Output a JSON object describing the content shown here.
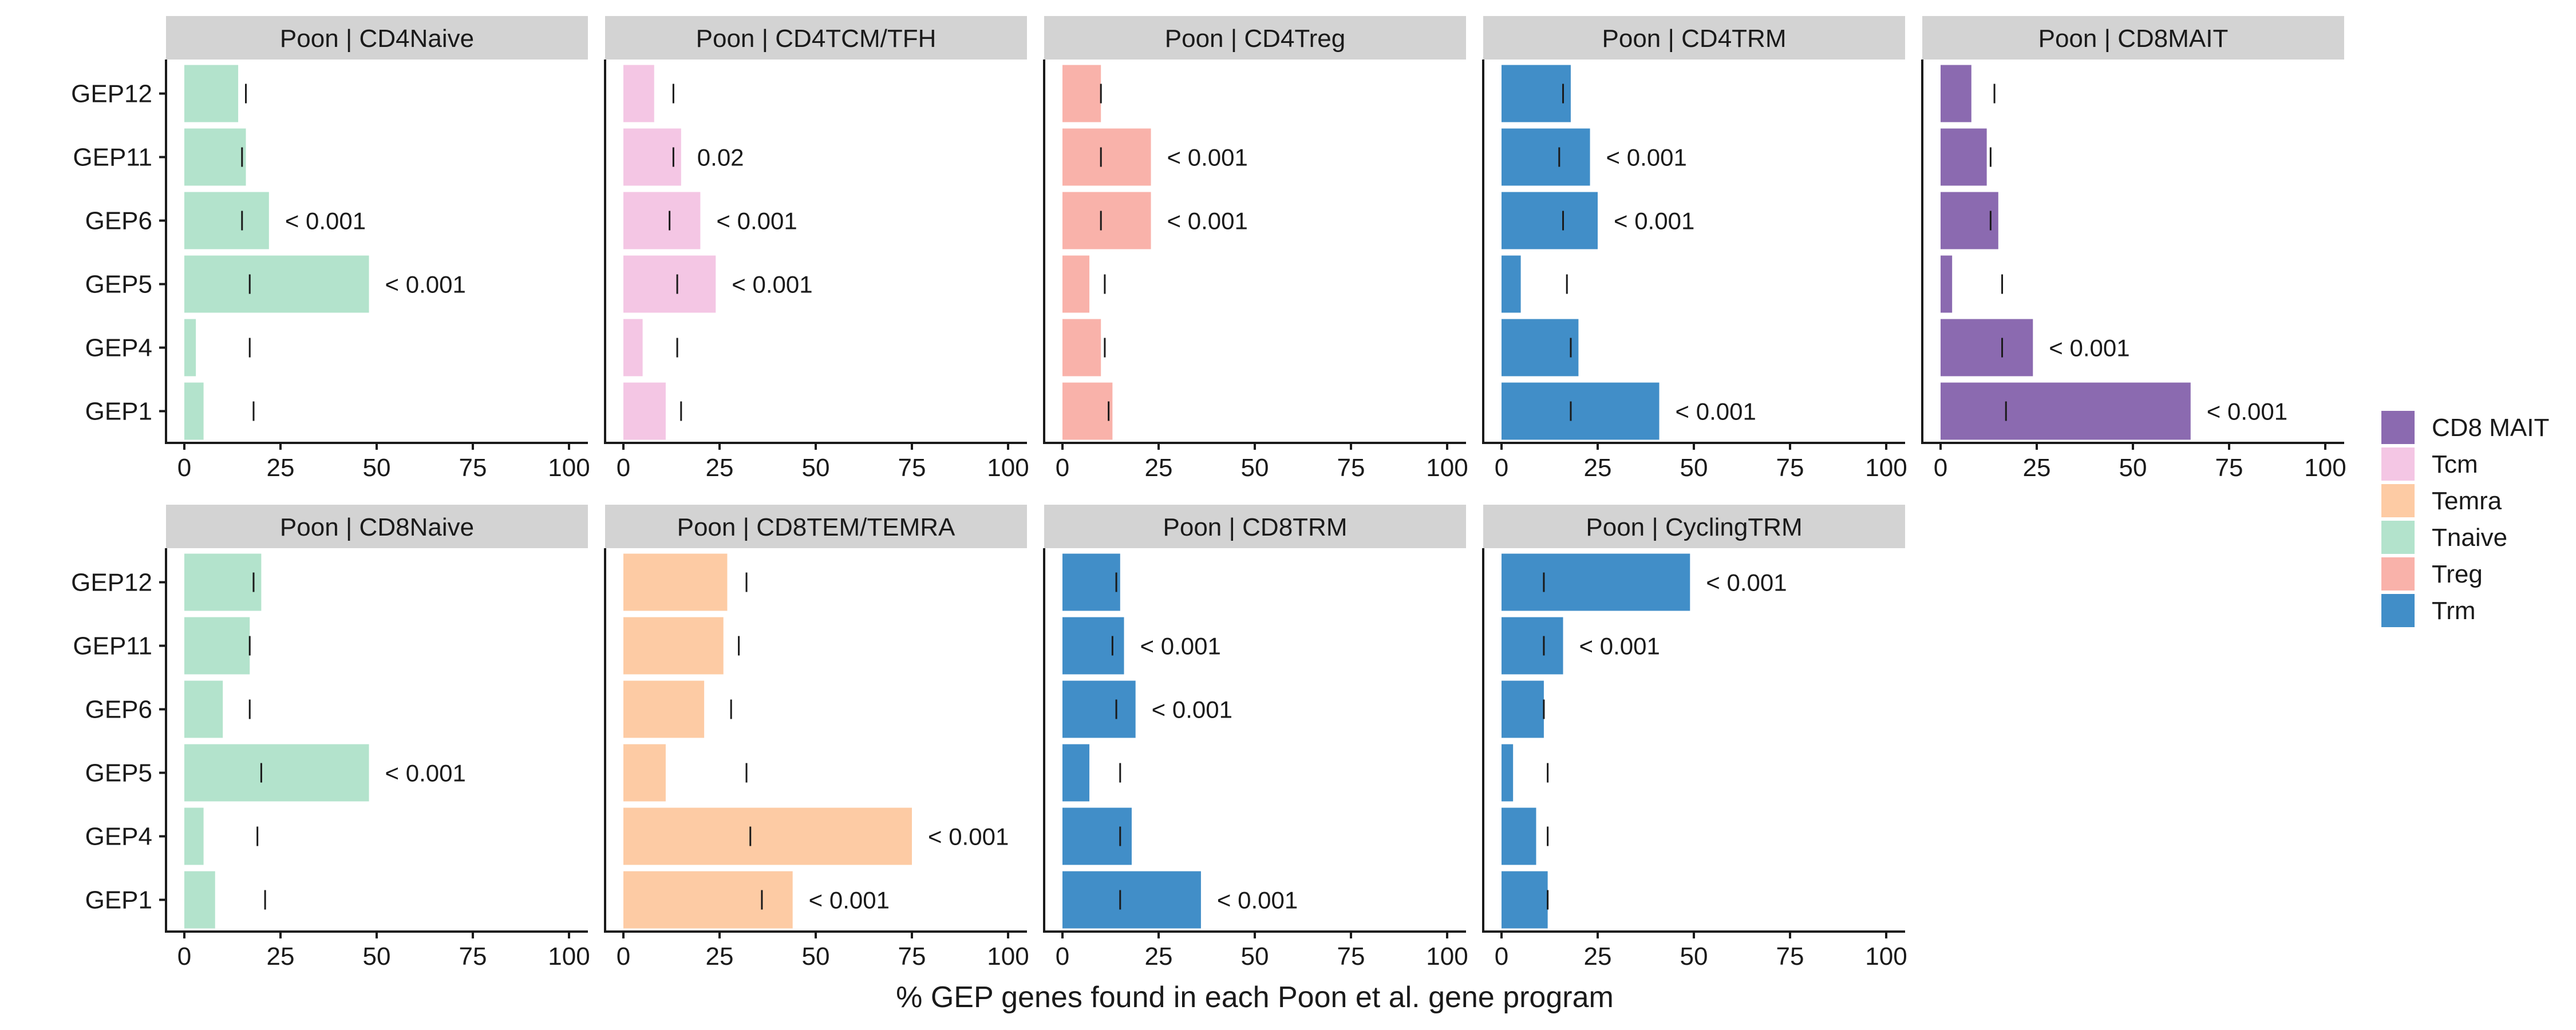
{
  "chart_data": {
    "type": "bar",
    "orientation": "horizontal",
    "xlabel": "% GEP genes found in each Poon et al. gene program",
    "ylabel": "",
    "xlim": [
      0,
      100
    ],
    "xticks": [
      "0",
      "25",
      "50",
      "75",
      "100"
    ],
    "categories": [
      "GEP12",
      "GEP11",
      "GEP6",
      "GEP5",
      "GEP4",
      "GEP1"
    ],
    "legend": {
      "position": "right",
      "entries": [
        {
          "name": "CD8 MAIT",
          "color": "#8b6ab0"
        },
        {
          "name": "Tcm",
          "color": "#f4c6e4"
        },
        {
          "name": "Temra",
          "color": "#fdcba4"
        },
        {
          "name": "Tnaive",
          "color": "#b3e3cc"
        },
        {
          "name": "Treg",
          "color": "#f9b2aa"
        },
        {
          "name": "Trm",
          "color": "#418ec8"
        }
      ]
    },
    "panels": [
      {
        "title": "Poon | CD4Naive",
        "group": "Tnaive",
        "values": [
          14,
          16,
          22,
          48,
          3,
          5
        ],
        "markers": [
          16,
          15,
          15,
          17,
          17,
          18
        ],
        "pvalues": [
          "",
          "",
          "< 0.001",
          "< 0.001",
          "",
          ""
        ]
      },
      {
        "title": "Poon | CD4TCM/TFH",
        "group": "Tcm",
        "values": [
          8,
          15,
          20,
          24,
          5,
          11
        ],
        "markers": [
          13,
          13,
          12,
          14,
          14,
          15
        ],
        "pvalues": [
          "",
          "0.02",
          "< 0.001",
          "< 0.001",
          "",
          ""
        ]
      },
      {
        "title": "Poon | CD4Treg",
        "group": "Treg",
        "values": [
          10,
          23,
          23,
          7,
          10,
          13
        ],
        "markers": [
          10,
          10,
          10,
          11,
          11,
          12
        ],
        "pvalues": [
          "",
          "< 0.001",
          "< 0.001",
          "",
          "",
          ""
        ]
      },
      {
        "title": "Poon | CD4TRM",
        "group": "Trm",
        "values": [
          18,
          23,
          25,
          5,
          20,
          41
        ],
        "markers": [
          16,
          15,
          16,
          17,
          18,
          18
        ],
        "pvalues": [
          "",
          "< 0.001",
          "< 0.001",
          "",
          "",
          "< 0.001"
        ]
      },
      {
        "title": "Poon | CD8MAIT",
        "group": "CD8 MAIT",
        "values": [
          8,
          12,
          15,
          3,
          24,
          65
        ],
        "markers": [
          14,
          13,
          13,
          16,
          16,
          17
        ],
        "pvalues": [
          "",
          "",
          "",
          "",
          "< 0.001",
          "< 0.001"
        ]
      },
      {
        "title": "Poon | CD8Naive",
        "group": "Tnaive",
        "values": [
          20,
          17,
          10,
          48,
          5,
          8
        ],
        "markers": [
          18,
          17,
          17,
          20,
          19,
          21
        ],
        "pvalues": [
          "",
          "",
          "",
          "< 0.001",
          "",
          ""
        ]
      },
      {
        "title": "Poon | CD8TEM/TEMRA",
        "group": "Temra",
        "values": [
          27,
          26,
          21,
          11,
          75,
          44
        ],
        "markers": [
          32,
          30,
          28,
          32,
          33,
          36
        ],
        "pvalues": [
          "",
          "",
          "",
          "",
          "< 0.001",
          "< 0.001"
        ]
      },
      {
        "title": "Poon | CD8TRM",
        "group": "Trm",
        "values": [
          15,
          16,
          19,
          7,
          18,
          36
        ],
        "markers": [
          14,
          13,
          14,
          15,
          15,
          15
        ],
        "pvalues": [
          "",
          "< 0.001",
          "< 0.001",
          "",
          "",
          "< 0.001"
        ]
      },
      {
        "title": "Poon | CyclingTRM",
        "group": "Trm",
        "values": [
          49,
          16,
          11,
          3,
          9,
          12
        ],
        "markers": [
          11,
          11,
          11,
          12,
          12,
          12
        ],
        "pvalues": [
          "< 0.001",
          "< 0.001",
          "",
          "",
          "",
          ""
        ]
      }
    ]
  }
}
